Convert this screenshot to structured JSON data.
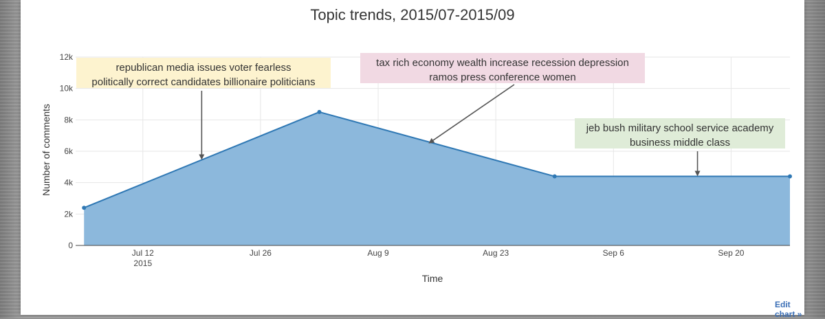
{
  "chart_data": {
    "type": "area",
    "title": "Topic trends, 2015/07-2015/09",
    "xlabel": "Time",
    "ylabel": "Number of comments",
    "x": [
      "2015-07-05",
      "2015-08-02",
      "2015-08-30",
      "2015-09-27"
    ],
    "values": [
      2400,
      8500,
      4400,
      4400
    ],
    "ylim": [
      0,
      12000
    ],
    "xlim": [
      "2015-07-04",
      "2015-09-27"
    ],
    "x_ticks": [
      {
        "date": "2015-07-12",
        "label": "Jul 12",
        "sublabel": "2015"
      },
      {
        "date": "2015-07-26",
        "label": "Jul 26",
        "sublabel": ""
      },
      {
        "date": "2015-08-09",
        "label": "Aug 9",
        "sublabel": ""
      },
      {
        "date": "2015-08-23",
        "label": "Aug 23",
        "sublabel": ""
      },
      {
        "date": "2015-09-06",
        "label": "Sep 6",
        "sublabel": ""
      },
      {
        "date": "2015-09-20",
        "label": "Sep 20",
        "sublabel": ""
      }
    ],
    "y_ticks": [
      {
        "value": 0,
        "label": "0"
      },
      {
        "value": 2000,
        "label": "2k"
      },
      {
        "value": 4000,
        "label": "4k"
      },
      {
        "value": 6000,
        "label": "6k"
      },
      {
        "value": 8000,
        "label": "8k"
      },
      {
        "value": 10000,
        "label": "10k"
      },
      {
        "value": 12000,
        "label": "12k"
      }
    ],
    "grid": true,
    "legend": "none",
    "colors": {
      "fill": "#8cb8dc",
      "line": "#2f78b4",
      "grid": "#e6e6e6"
    },
    "annotations": [
      {
        "lines": [
          "republican media issues voter fearless",
          "politically correct candidates billionaire politicians"
        ],
        "bg": "#fdf3cf",
        "arrow_to": {
          "x": "2015-07-19",
          "y": 5450
        }
      },
      {
        "lines": [
          "tax rich economy wealth increase recession depression",
          "ramos press conference women"
        ],
        "bg": "#f1d9e3",
        "arrow_to": {
          "x": "2015-08-15",
          "y": 6500
        }
      },
      {
        "lines": [
          "jeb bush military school service academy",
          "business middle class"
        ],
        "bg": "#dfecd8",
        "arrow_to": {
          "x": "2015-09-16",
          "y": 4400
        }
      }
    ]
  },
  "footer": {
    "edit_link": "Edit chart »"
  }
}
